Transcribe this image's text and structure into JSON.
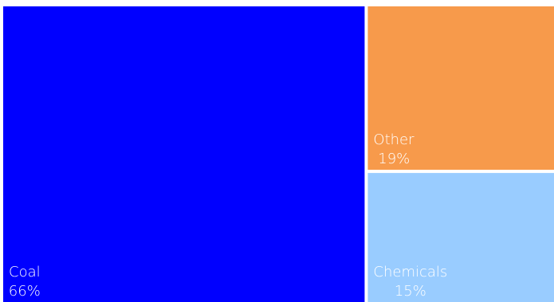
{
  "chart_data": {
    "type": "treemap",
    "items": [
      {
        "name": "Coal",
        "value": 66,
        "value_label": "66%",
        "color": "#0000ff"
      },
      {
        "name": "Other",
        "value": 19,
        "value_label": "19%",
        "color": "#f79a4b"
      },
      {
        "name": "Chemicals",
        "value": 15,
        "value_label": "15%",
        "color": "#99ccff"
      }
    ],
    "background_color": "#ffffff",
    "label_color": "#ffffff"
  }
}
